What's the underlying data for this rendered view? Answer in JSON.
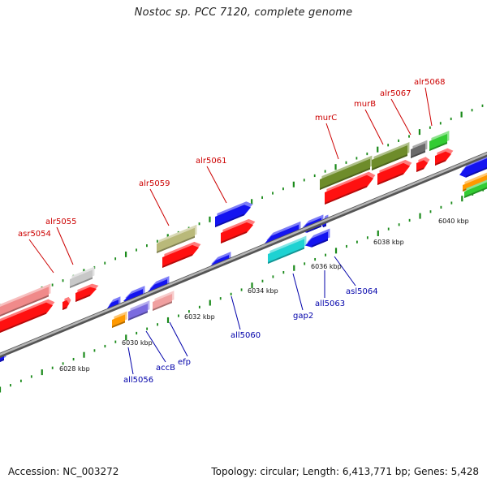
{
  "title": "Nostoc sp. PCC 7120, complete genome",
  "footer": {
    "accession": "Accession: NC_003272",
    "summary": "Topology: circular; Length: 6,413,771 bp; Genes: 5,428"
  },
  "colors": {
    "backbone": "#8a8a8a",
    "forward_label": "#cc0000",
    "reverse_label": "#0000aa",
    "tick": "#1a8a1a"
  },
  "scale_labels": [
    "6028 kbp",
    "6030 kbp",
    "6032 kbp",
    "6034 kbp",
    "6036 kbp",
    "6038 kbp",
    "6040 kbp"
  ],
  "forward_labels": [
    "asr5054",
    "alr5055",
    "alr5059",
    "alr5061",
    "murC",
    "murB",
    "alr5067",
    "alr5068"
  ],
  "reverse_labels": [
    "all5056",
    "accB",
    "efp",
    "all5060",
    "gap2",
    "all5063",
    "asl5064"
  ]
}
